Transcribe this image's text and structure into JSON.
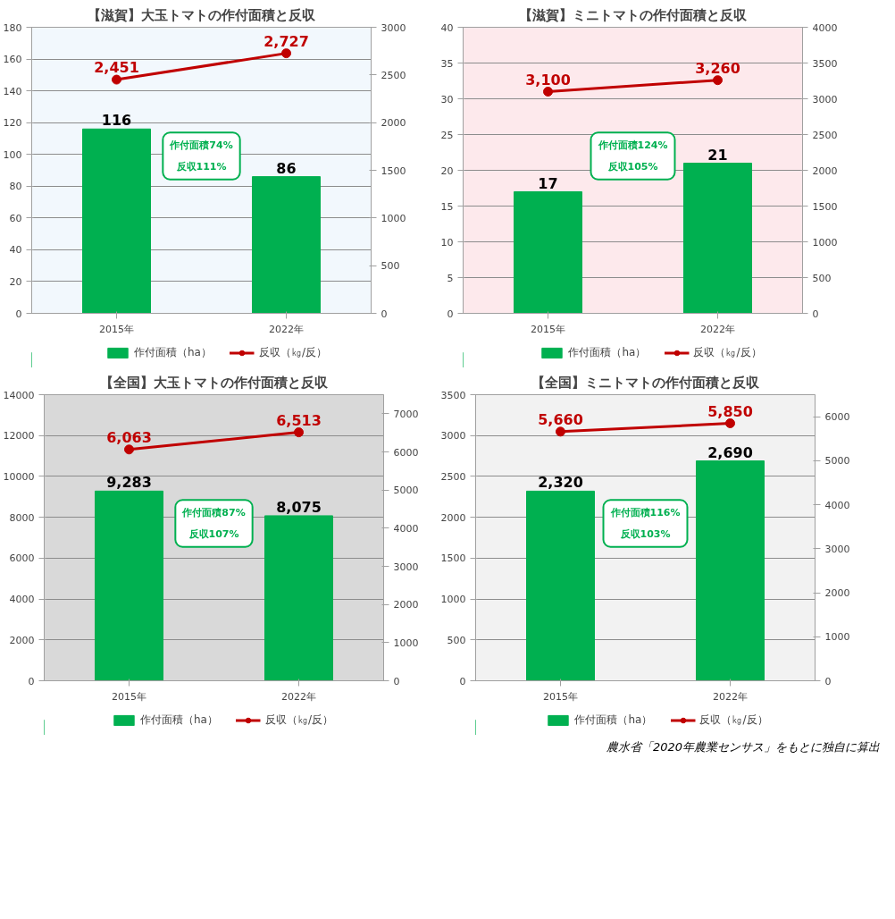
{
  "chart_data": [
    {
      "type": "bar",
      "title": "【滋賀】大玉トマトの作付面積と反収",
      "categories": [
        "2015年",
        "2022年"
      ],
      "series": [
        {
          "name": "作付面積（ha）",
          "color": "#00b050",
          "values": [
            116,
            86
          ],
          "value_labels": [
            "116",
            "86"
          ]
        },
        {
          "name": "反収（㎏/反）",
          "type": "line",
          "axis": "y2",
          "color": "#c00000",
          "values": [
            2451,
            2727
          ],
          "value_labels": [
            "2,451",
            "2,727"
          ]
        }
      ],
      "ylim": [
        0,
        180
      ],
      "yticks": [
        0,
        20,
        40,
        60,
        80,
        100,
        120,
        140,
        160,
        180
      ],
      "y2lim": [
        0,
        3000
      ],
      "y2ticks": [
        0,
        500,
        1000,
        1500,
        2000,
        2500,
        3000
      ],
      "grid": "y",
      "legend": "bottom",
      "marker": "circle",
      "annotations": [
        "作付面積74%\n反収111%"
      ]
    },
    {
      "type": "bar",
      "title": "【滋賀】ミニトマトの作付面積と反収",
      "categories": [
        "2015年",
        "2022年"
      ],
      "series": [
        {
          "name": "作付面積（ha）",
          "color": "#00b050",
          "values": [
            17,
            21
          ],
          "value_labels": [
            "17",
            "21"
          ]
        },
        {
          "name": "反収（㎏/反）",
          "type": "line",
          "axis": "y2",
          "color": "#c00000",
          "values": [
            3100,
            3260
          ],
          "value_labels": [
            "3,100",
            "3,260"
          ]
        }
      ],
      "ylim": [
        0,
        40
      ],
      "yticks": [
        0,
        5,
        10,
        15,
        20,
        25,
        30,
        35,
        40
      ],
      "y2lim": [
        0,
        4000
      ],
      "y2ticks": [
        0,
        500,
        1000,
        1500,
        2000,
        2500,
        3000,
        3500,
        4000
      ],
      "grid": "y",
      "legend": "bottom",
      "marker": "circle",
      "annotations": [
        "作付面積124%\n反収105%"
      ]
    },
    {
      "type": "bar",
      "title": "【全国】大玉トマトの作付面積と反収",
      "categories": [
        "2015年",
        "2022年"
      ],
      "series": [
        {
          "name": "作付面積（ha）",
          "color": "#00b050",
          "values": [
            9283,
            8075
          ],
          "value_labels": [
            "9,283",
            "8,075"
          ]
        },
        {
          "name": "反収（㎏/反）",
          "type": "line",
          "axis": "y2",
          "color": "#c00000",
          "values": [
            6063,
            6513
          ],
          "value_labels": [
            "6,063",
            "6,513"
          ]
        }
      ],
      "ylim": [
        0,
        14000
      ],
      "yticks": [
        0,
        2000,
        4000,
        6000,
        8000,
        10000,
        12000,
        14000
      ],
      "y2lim": [
        0,
        7500
      ],
      "y2ticks": [
        0,
        1000,
        2000,
        3000,
        4000,
        5000,
        6000,
        7000
      ],
      "grid": "y",
      "legend": "bottom",
      "marker": "circle",
      "annotations": [
        "作付面積87%\n反収107%"
      ]
    },
    {
      "type": "bar",
      "title": "【全国】ミニトマトの作付面積と反収",
      "categories": [
        "2015年",
        "2022年"
      ],
      "series": [
        {
          "name": "作付面積（ha）",
          "color": "#00b050",
          "values": [
            2320,
            2690
          ],
          "value_labels": [
            "2,320",
            "2,690"
          ]
        },
        {
          "name": "反収（㎏/反）",
          "type": "line",
          "axis": "y2",
          "color": "#c00000",
          "values": [
            5660,
            5850
          ],
          "value_labels": [
            "5,660",
            "5,850"
          ]
        }
      ],
      "ylim": [
        0,
        3500
      ],
      "yticks": [
        0,
        500,
        1000,
        1500,
        2000,
        2500,
        3000,
        3500
      ],
      "y2lim": [
        0,
        6500
      ],
      "y2ticks": [
        0,
        1000,
        2000,
        3000,
        4000,
        5000,
        6000
      ],
      "grid": "y",
      "legend": "bottom",
      "marker": "circle",
      "annotations": [
        "作付面積116%\n反収103%",
        "農水省「2020年農業センサス」をもとに独自に算出"
      ]
    }
  ]
}
